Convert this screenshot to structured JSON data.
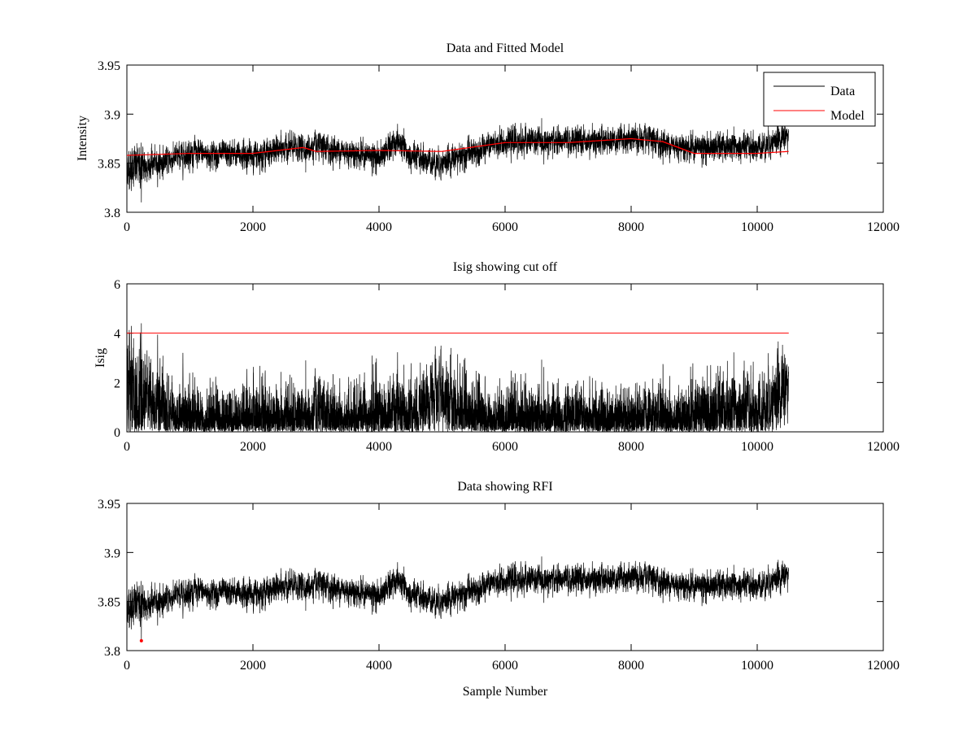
{
  "chart_data": [
    {
      "type": "line",
      "title": "Data and Fitted Model",
      "xlabel": "",
      "ylabel": "Intensity",
      "xlim": [
        0,
        12000
      ],
      "ylim": [
        3.8,
        3.95
      ],
      "xticks": [
        "0",
        "2000",
        "4000",
        "6000",
        "8000",
        "10000",
        "12000"
      ],
      "yticks": [
        "3.8",
        "3.85",
        "3.9",
        "3.95"
      ],
      "legend": {
        "placement": "top-right",
        "entries": [
          "Data",
          "Model"
        ]
      },
      "n_samples": 10500,
      "series": [
        {
          "name": "Data",
          "color": "#000000",
          "noise_amplitude": 0.012,
          "trend_x": [
            0,
            500,
            1000,
            2000,
            2500,
            3000,
            3500,
            4000,
            4300,
            4500,
            5000,
            5500,
            6000,
            7000,
            8000,
            8500,
            9000,
            10000,
            10500
          ],
          "trend_y": [
            3.845,
            3.85,
            3.86,
            3.858,
            3.865,
            3.866,
            3.862,
            3.856,
            3.872,
            3.856,
            3.85,
            3.862,
            3.872,
            3.872,
            3.875,
            3.87,
            3.866,
            3.866,
            3.878
          ]
        },
        {
          "name": "Model",
          "color": "#ff0000",
          "x": [
            0,
            1000,
            2000,
            2800,
            3000,
            4000,
            5000,
            6000,
            7000,
            8000,
            8500,
            9000,
            10000,
            10500
          ],
          "y": [
            3.858,
            3.86,
            3.86,
            3.866,
            3.862,
            3.863,
            3.862,
            3.871,
            3.871,
            3.875,
            3.872,
            3.86,
            3.86,
            3.862
          ]
        }
      ]
    },
    {
      "type": "line",
      "title": "Isig showing cut off",
      "xlabel": "",
      "ylabel": "Isig",
      "xlim": [
        0,
        12000
      ],
      "ylim": [
        0,
        6
      ],
      "xticks": [
        "0",
        "2000",
        "4000",
        "6000",
        "8000",
        "10000",
        "12000"
      ],
      "yticks": [
        "0",
        "2",
        "4",
        "6"
      ],
      "cutoff": {
        "value": 4,
        "color": "#ff0000"
      },
      "series": [
        {
          "name": "Isig",
          "color": "#000000",
          "peak": {
            "x": 230,
            "y": 4.4
          }
        }
      ]
    },
    {
      "type": "line",
      "title": "Data showing RFI",
      "xlabel": "Sample Number",
      "ylabel": "",
      "xlim": [
        0,
        12000
      ],
      "ylim": [
        3.8,
        3.95
      ],
      "xticks": [
        "0",
        "2000",
        "4000",
        "6000",
        "8000",
        "10000",
        "12000"
      ],
      "yticks": [
        "3.8",
        "3.85",
        "3.9",
        "3.95"
      ],
      "series": [
        {
          "name": "Data",
          "color": "#000000"
        },
        {
          "name": "RFI",
          "color": "#ff0000",
          "points": [
            {
              "x": 230,
              "y": 3.81
            }
          ]
        }
      ]
    }
  ]
}
